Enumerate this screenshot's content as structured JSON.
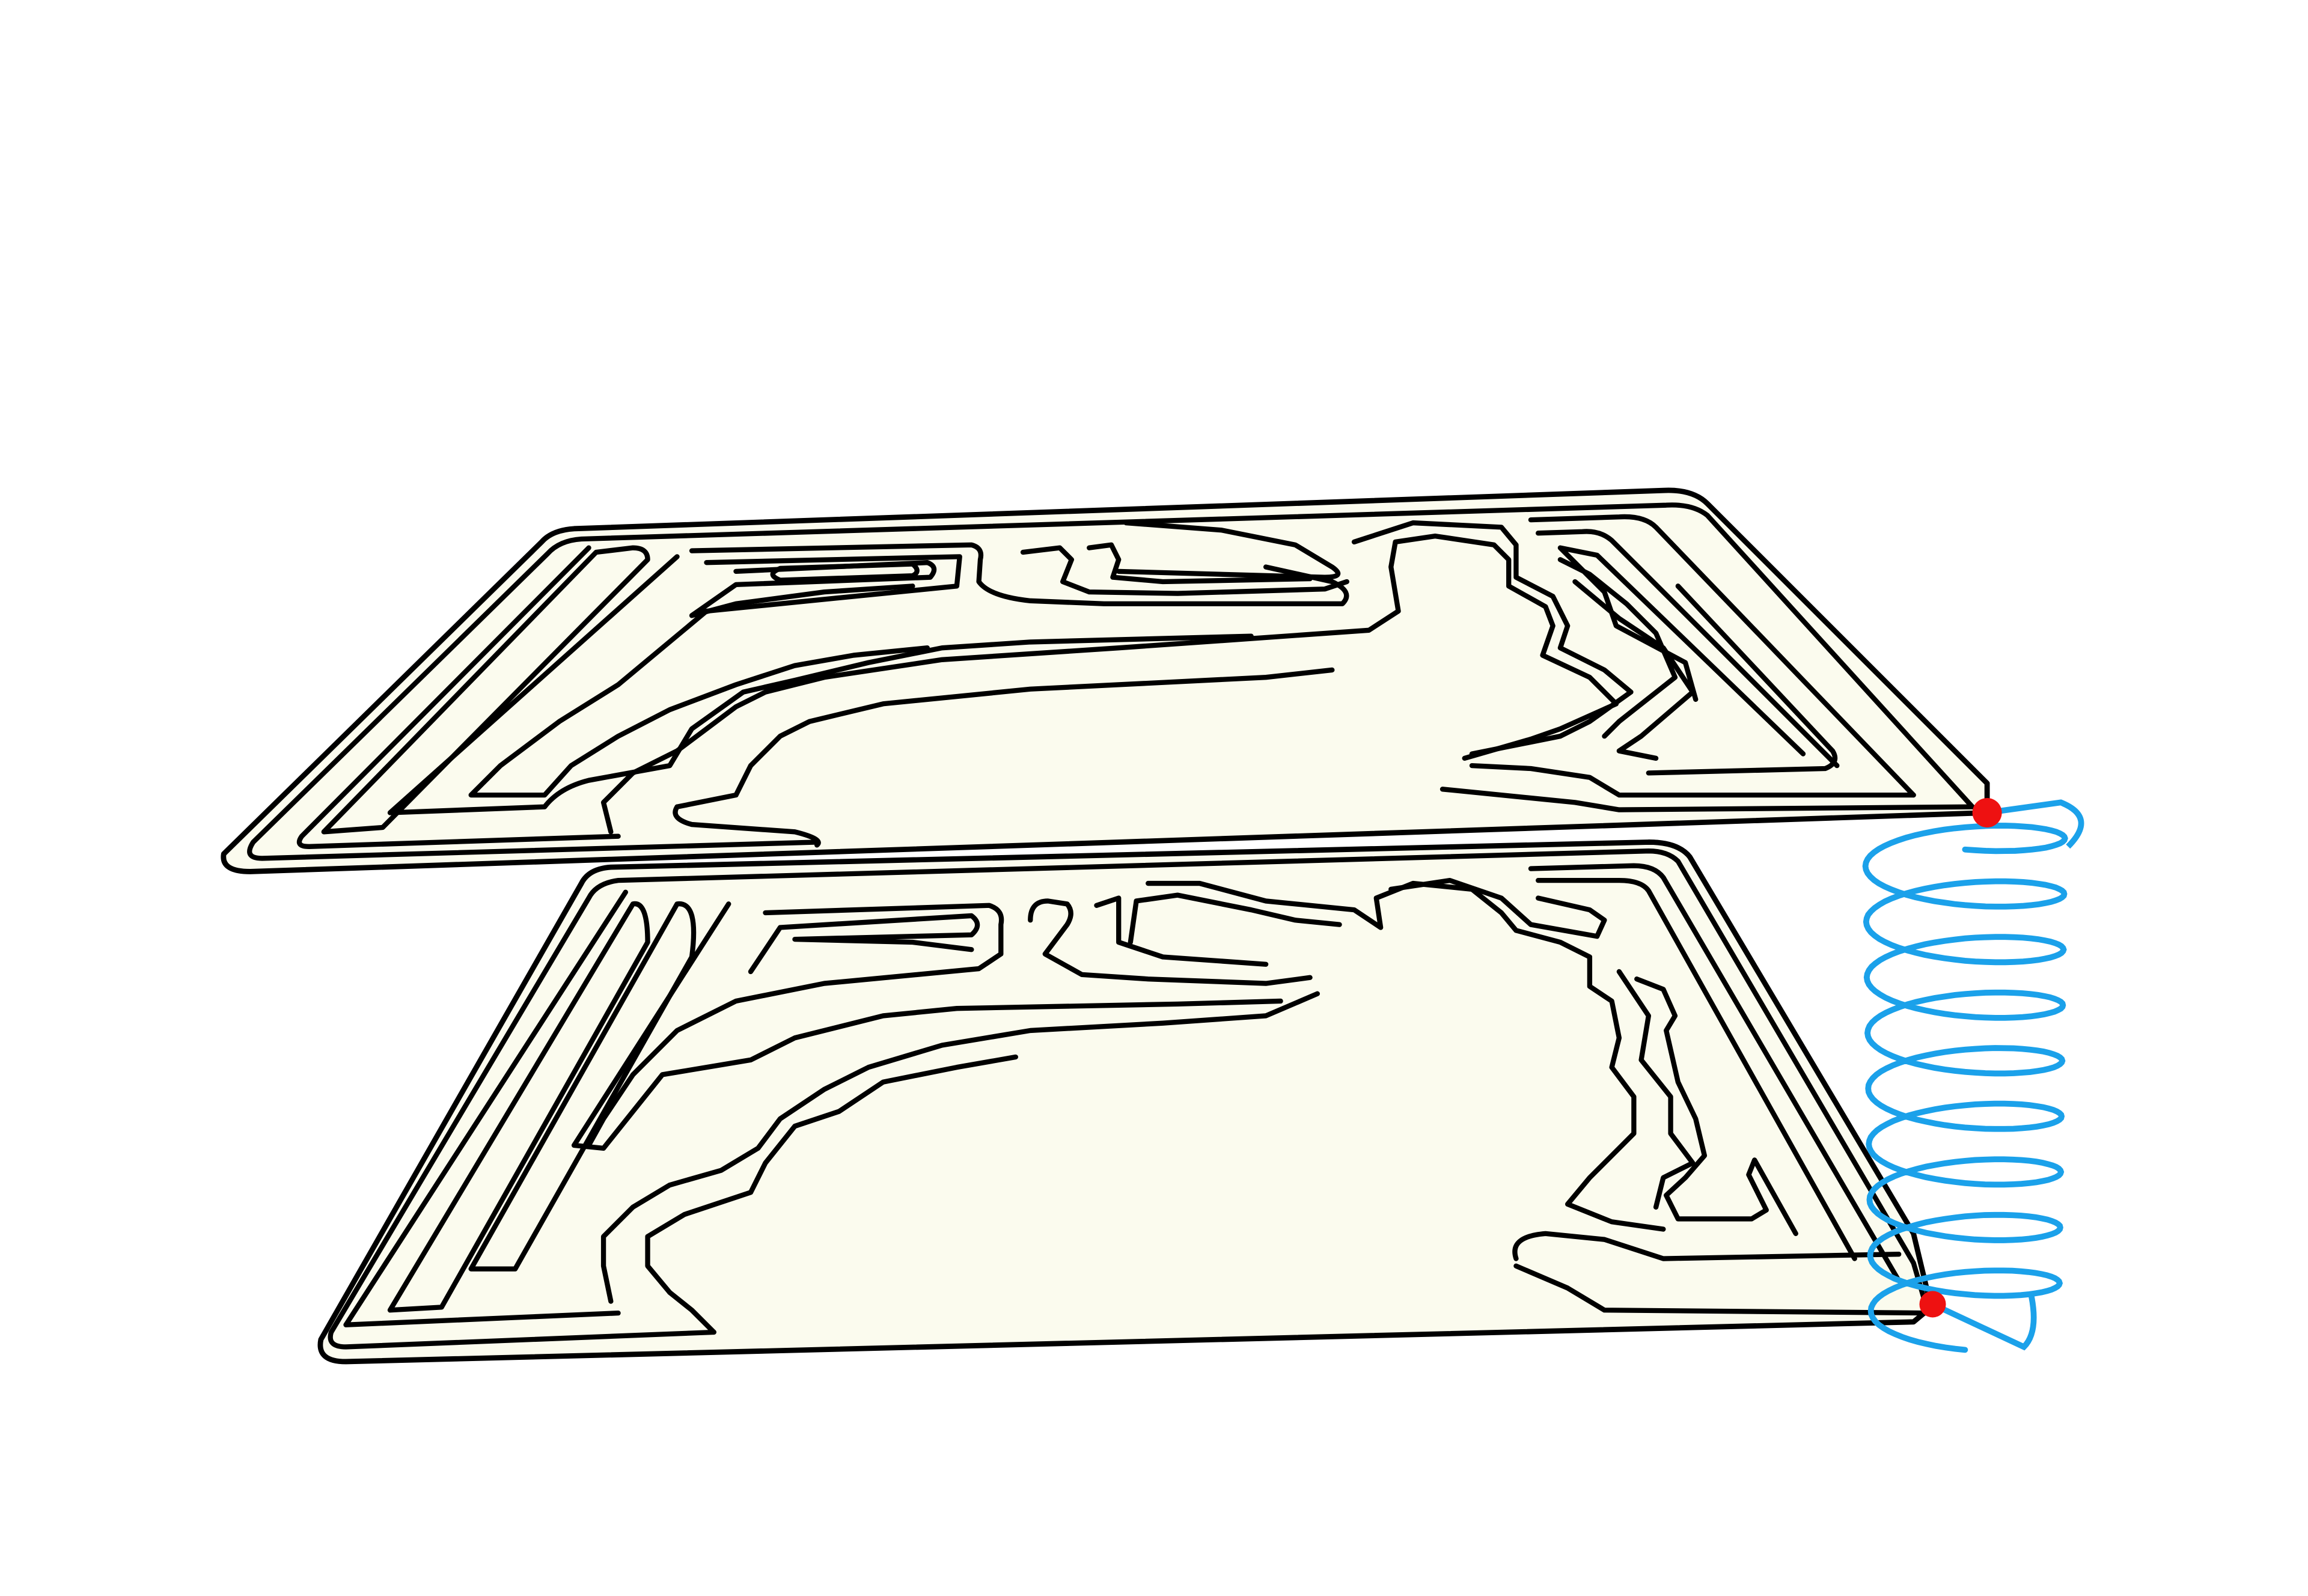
{
  "figure": {
    "background": "#ffffff",
    "sheet_fill": "#fbfbee",
    "sheet_outline": "#000000",
    "trace_color": "#000000",
    "coil_color": "#1ba1ea",
    "terminal_color": "#ee1111",
    "layers": [
      {
        "id": "top",
        "role": "upper-meander-layer"
      },
      {
        "id": "bottom",
        "role": "lower-meander-layer"
      }
    ],
    "connector": {
      "shape": "helix",
      "turns": 9
    },
    "terminals": 2
  }
}
